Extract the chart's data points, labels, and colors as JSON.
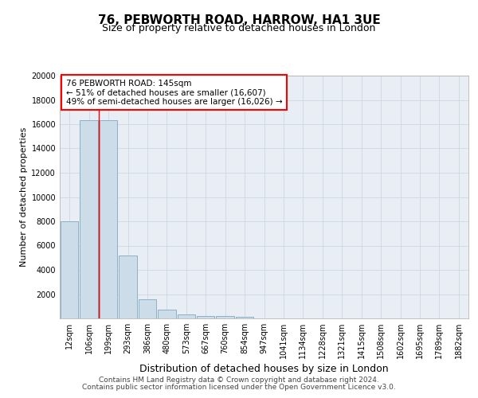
{
  "title": "76, PEBWORTH ROAD, HARROW, HA1 3UE",
  "subtitle": "Size of property relative to detached houses in London",
  "xlabel": "Distribution of detached houses by size in London",
  "ylabel": "Number of detached properties",
  "categories": [
    "12sqm",
    "106sqm",
    "199sqm",
    "293sqm",
    "386sqm",
    "480sqm",
    "573sqm",
    "667sqm",
    "760sqm",
    "854sqm",
    "947sqm",
    "1041sqm",
    "1134sqm",
    "1228sqm",
    "1321sqm",
    "1415sqm",
    "1508sqm",
    "1602sqm",
    "1695sqm",
    "1789sqm",
    "1882sqm"
  ],
  "bar_heights": [
    8000,
    16300,
    16300,
    5200,
    1600,
    700,
    300,
    200,
    200,
    100,
    0,
    0,
    0,
    0,
    0,
    0,
    0,
    0,
    0,
    0,
    0
  ],
  "bar_color": "#ccdce8",
  "bar_edge_color": "#8ab0c8",
  "ylim": [
    0,
    20000
  ],
  "yticks": [
    0,
    2000,
    4000,
    6000,
    8000,
    10000,
    12000,
    14000,
    16000,
    18000,
    20000
  ],
  "annotation_box_text": [
    "76 PEBWORTH ROAD: 145sqm",
    "← 51% of detached houses are smaller (16,607)",
    "49% of semi-detached houses are larger (16,026) →"
  ],
  "red_line_x": 1.5,
  "footer_line1": "Contains HM Land Registry data © Crown copyright and database right 2024.",
  "footer_line2": "Contains public sector information licensed under the Open Government Licence v3.0.",
  "grid_color": "#c8d4e0",
  "plot_bg_color": "#e8eef4",
  "title_fontsize": 11,
  "subtitle_fontsize": 9,
  "ylabel_fontsize": 8,
  "xlabel_fontsize": 9,
  "tick_fontsize": 7,
  "footer_fontsize": 6.5,
  "annot_fontsize": 7.5
}
